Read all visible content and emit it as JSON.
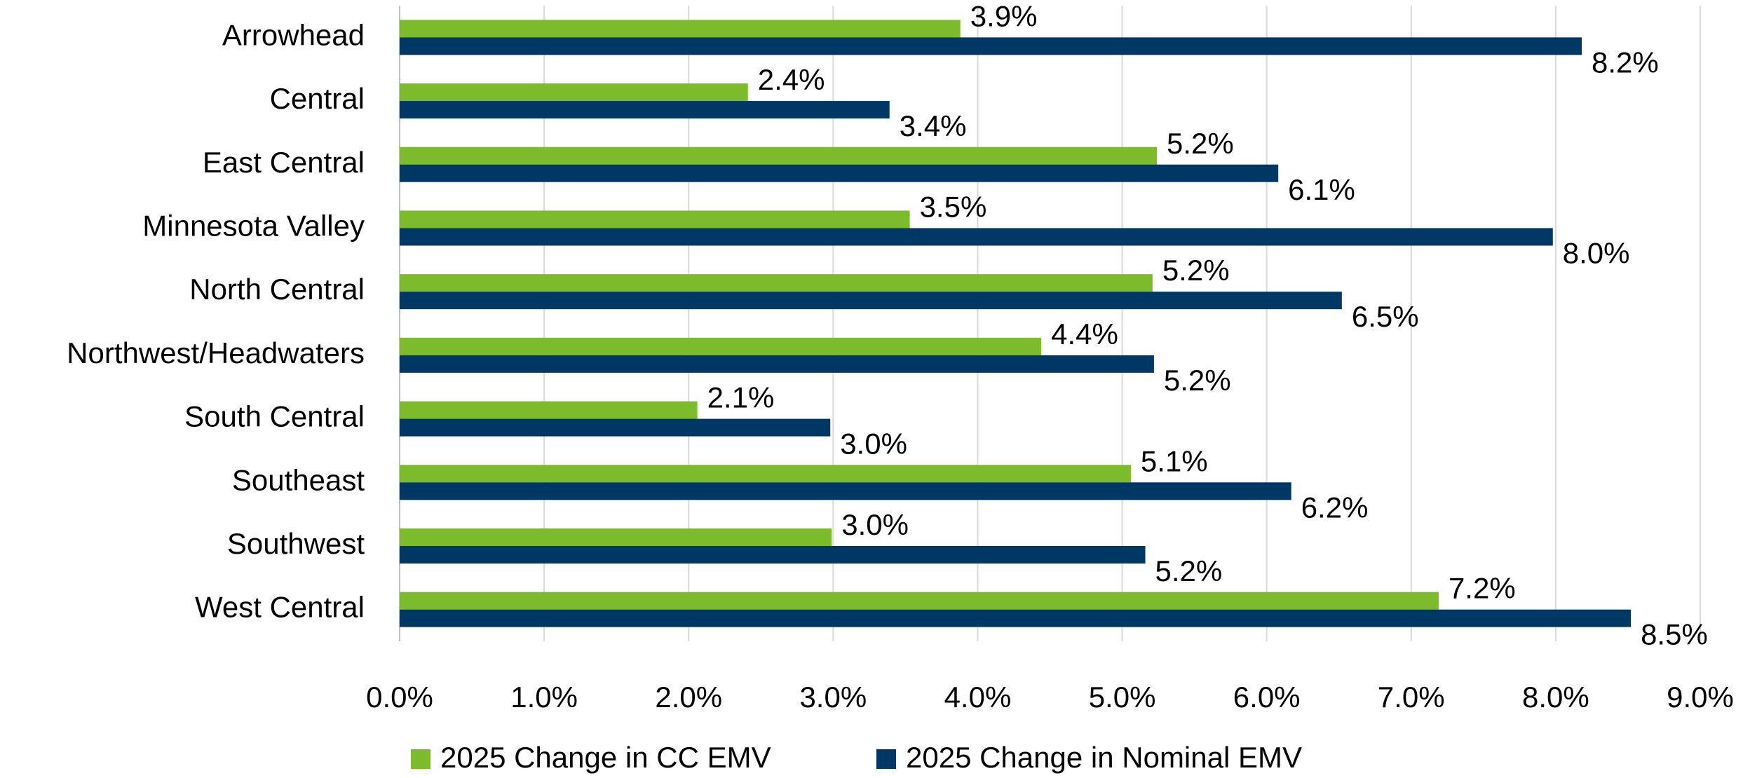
{
  "chart_data": {
    "type": "hbar",
    "categories": [
      "Arrowhead",
      "Central",
      "East Central",
      "Minnesota Valley",
      "North Central",
      "Northwest/Headwaters",
      "South Central",
      "Southeast",
      "Southwest",
      "West Central"
    ],
    "series": [
      {
        "name": "2025 Change in CC EMV",
        "color": "#7cbb2b",
        "values": [
          3.88,
          2.41,
          5.24,
          3.53,
          5.21,
          4.44,
          2.06,
          5.06,
          2.99,
          7.19
        ],
        "value_labels": [
          "3.9%",
          "2.4%",
          "5.2%",
          "3.5%",
          "5.2%",
          "4.4%",
          "2.1%",
          "5.1%",
          "3.0%",
          "7.2%"
        ]
      },
      {
        "name": "2025 Change in Nominal EMV",
        "color": "#003865",
        "values": [
          8.18,
          3.39,
          6.08,
          7.98,
          6.52,
          5.22,
          2.98,
          6.17,
          5.16,
          8.52
        ],
        "value_labels": [
          "8.2%",
          "3.4%",
          "6.1%",
          "8.0%",
          "6.5%",
          "5.2%",
          "3.0%",
          "6.2%",
          "5.2%",
          "8.5%"
        ]
      }
    ],
    "xlim": [
      0,
      9
    ],
    "xticks": [
      {
        "value": 0,
        "label": "0.0%"
      },
      {
        "value": 1,
        "label": "1.0%"
      },
      {
        "value": 2,
        "label": "2.0%"
      },
      {
        "value": 3,
        "label": "3.0%"
      },
      {
        "value": 4,
        "label": "4.0%"
      },
      {
        "value": 5,
        "label": "5.0%"
      },
      {
        "value": 6,
        "label": "6.0%"
      },
      {
        "value": 7,
        "label": "7.0%"
      },
      {
        "value": 8,
        "label": "8.0%"
      },
      {
        "value": 9,
        "label": "9.0%"
      }
    ],
    "grid": true,
    "legend": "bottom"
  }
}
